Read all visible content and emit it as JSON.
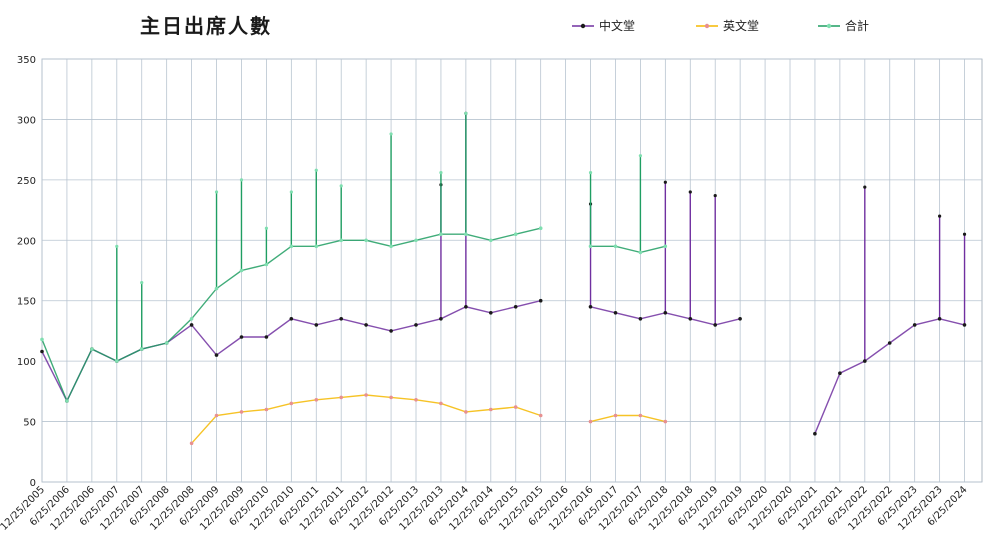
{
  "chart_data": {
    "type": "line",
    "title": "主日出席人數",
    "xlabel": "",
    "ylabel": "",
    "ylim": [
      0,
      350
    ],
    "yticks": [
      0,
      50,
      100,
      150,
      200,
      250,
      300,
      350
    ],
    "grid": true,
    "legend_position": "top-right",
    "x_ticks": [
      "12/25/2005",
      "6/25/2006",
      "12/25/2006",
      "6/25/2007",
      "12/25/2007",
      "6/25/2008",
      "12/25/2008",
      "6/25/2009",
      "12/25/2009",
      "6/25/2010",
      "12/25/2010",
      "6/25/2011",
      "12/25/2011",
      "6/25/2012",
      "12/25/2012",
      "6/25/2013",
      "12/25/2013",
      "6/25/2014",
      "12/25/2014",
      "6/25/2015",
      "12/25/2015",
      "6/25/2016",
      "12/25/2016",
      "6/25/2017",
      "12/25/2017",
      "6/25/2018",
      "12/25/2018",
      "6/25/2019",
      "12/25/2019",
      "6/25/2020",
      "12/25/2020",
      "6/25/2021",
      "12/25/2021",
      "6/25/2022",
      "12/25/2022",
      "6/25/2023",
      "12/25/2023",
      "6/25/2024"
    ],
    "series": [
      {
        "name": "中文堂",
        "color": "#7030a0",
        "marker": "#1a1a1a",
        "points": [
          [
            "12/25/2005",
            108
          ],
          [
            "6/25/2006",
            67
          ],
          [
            "12/25/2006",
            110
          ],
          [
            "6/25/2007",
            100
          ],
          [
            "12/25/2007",
            110
          ],
          [
            "6/25/2008",
            115
          ],
          [
            "12/25/2008",
            130
          ],
          [
            "6/25/2009",
            105
          ],
          [
            "12/25/2009",
            120
          ],
          [
            "6/25/2010",
            120
          ],
          [
            "12/25/2010",
            135
          ],
          [
            "6/25/2011",
            130
          ],
          [
            "12/25/2011",
            135
          ],
          [
            "6/25/2012",
            130
          ],
          [
            "12/25/2012",
            125
          ],
          [
            "6/25/2013",
            130
          ],
          [
            "12/25/2013",
            135
          ],
          [
            "6/25/2014",
            145
          ],
          [
            "12/25/2014",
            140
          ],
          [
            "6/25/2015",
            145
          ],
          [
            "12/25/2015",
            150
          ],
          [
            "6/25/2016",
            null
          ],
          [
            "12/25/2016",
            145
          ],
          [
            "6/25/2017",
            140
          ],
          [
            "12/25/2017",
            135
          ],
          [
            "6/25/2018",
            140
          ],
          [
            "12/25/2018",
            135
          ],
          [
            "6/25/2019",
            130
          ],
          [
            "12/25/2019",
            135
          ],
          [
            "6/25/2020",
            null
          ],
          [
            "12/25/2020",
            null
          ],
          [
            "6/25/2021",
            40
          ],
          [
            "12/25/2021",
            90
          ],
          [
            "6/25/2022",
            100
          ],
          [
            "12/25/2022",
            115
          ],
          [
            "6/25/2023",
            130
          ],
          [
            "12/25/2023",
            135
          ],
          [
            "6/25/2024",
            130
          ]
        ],
        "peaks": [
          [
            "12/25/2013",
            246
          ],
          [
            "6/25/2014",
            305
          ],
          [
            "12/25/2016",
            230
          ],
          [
            "6/25/2018",
            248
          ],
          [
            "12/25/2018",
            240
          ],
          [
            "6/25/2019",
            237
          ],
          [
            "6/25/2022",
            244
          ],
          [
            "12/25/2023",
            220
          ],
          [
            "6/25/2024",
            205
          ]
        ]
      },
      {
        "name": "英文堂",
        "color": "#f5b800",
        "marker": "#e89090",
        "points": [
          [
            "12/25/2008",
            32
          ],
          [
            "6/25/2009",
            55
          ],
          [
            "12/25/2009",
            58
          ],
          [
            "6/25/2010",
            60
          ],
          [
            "12/25/2010",
            65
          ],
          [
            "6/25/2011",
            68
          ],
          [
            "12/25/2011",
            70
          ],
          [
            "6/25/2012",
            72
          ],
          [
            "12/25/2012",
            70
          ],
          [
            "6/25/2013",
            68
          ],
          [
            "12/25/2013",
            65
          ],
          [
            "6/25/2014",
            58
          ],
          [
            "12/25/2014",
            60
          ],
          [
            "6/25/2015",
            62
          ],
          [
            "12/25/2015",
            55
          ],
          [
            "6/25/2016",
            null
          ],
          [
            "12/25/2016",
            50
          ],
          [
            "6/25/2017",
            55
          ],
          [
            "12/25/2017",
            55
          ],
          [
            "6/25/2018",
            50
          ]
        ]
      },
      {
        "name": "合計",
        "color": "#1f9e62",
        "marker": "#7fdfb0",
        "points": [
          [
            "12/25/2005",
            118
          ],
          [
            "6/25/2006",
            67
          ],
          [
            "12/25/2006",
            110
          ],
          [
            "6/25/2007",
            100
          ],
          [
            "12/25/2007",
            110
          ],
          [
            "6/25/2008",
            115
          ],
          [
            "12/25/2008",
            135
          ],
          [
            "6/25/2009",
            160
          ],
          [
            "12/25/2009",
            175
          ],
          [
            "6/25/2010",
            180
          ],
          [
            "12/25/2010",
            195
          ],
          [
            "6/25/2011",
            195
          ],
          [
            "12/25/2011",
            200
          ],
          [
            "6/25/2012",
            200
          ],
          [
            "12/25/2012",
            195
          ],
          [
            "6/25/2013",
            200
          ],
          [
            "12/25/2013",
            205
          ],
          [
            "6/25/2014",
            205
          ],
          [
            "12/25/2014",
            200
          ],
          [
            "6/25/2015",
            205
          ],
          [
            "12/25/2015",
            210
          ],
          [
            "6/25/2016",
            null
          ],
          [
            "12/25/2016",
            195
          ],
          [
            "6/25/2017",
            195
          ],
          [
            "12/25/2017",
            190
          ],
          [
            "6/25/2018",
            195
          ]
        ],
        "peaks": [
          [
            "6/25/2007",
            195
          ],
          [
            "12/25/2007",
            165
          ],
          [
            "6/25/2009",
            240
          ],
          [
            "12/25/2009",
            250
          ],
          [
            "6/25/2010",
            210
          ],
          [
            "12/25/2010",
            240
          ],
          [
            "6/25/2011",
            258
          ],
          [
            "12/25/2011",
            245
          ],
          [
            "12/25/2012",
            288
          ],
          [
            "12/25/2013",
            256
          ],
          [
            "6/25/2014",
            305
          ],
          [
            "12/25/2016",
            256
          ],
          [
            "12/25/2017",
            270
          ]
        ]
      }
    ]
  }
}
